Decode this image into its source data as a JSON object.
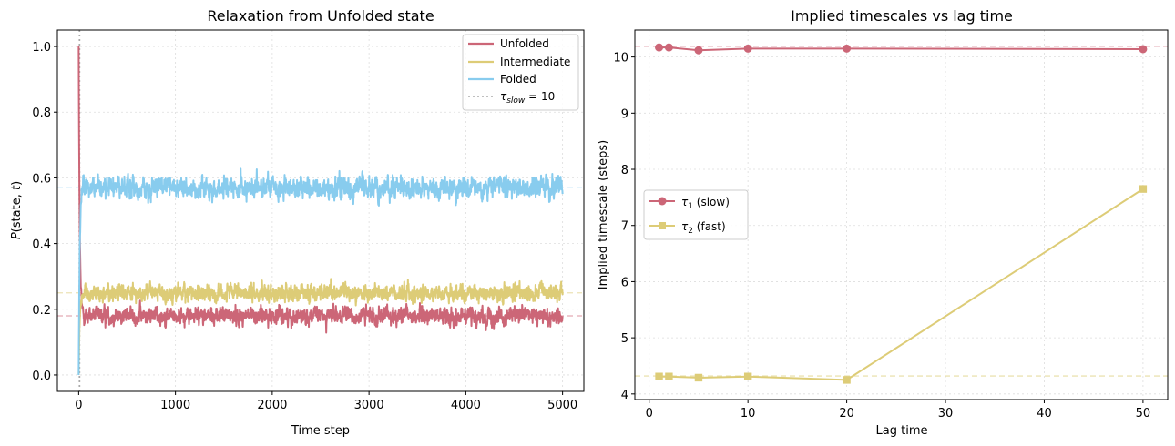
{
  "figure": {
    "background": "#ffffff"
  },
  "chart_data": [
    {
      "type": "line",
      "title": "Relaxation from Unfolded state",
      "xlabel": "Time step",
      "ylabel": "P(state, t)",
      "xlim": [
        -220,
        5220
      ],
      "ylim": [
        -0.05,
        1.05
      ],
      "xticks": [
        0,
        1000,
        2000,
        3000,
        4000,
        5000
      ],
      "xtick_labels": [
        "0",
        "1000",
        "2000",
        "3000",
        "4000",
        "5000"
      ],
      "yticks": [
        0.0,
        0.2,
        0.4,
        0.6,
        0.8,
        1.0
      ],
      "ytick_labels": [
        "0.0",
        "0.2",
        "0.4",
        "0.6",
        "0.8",
        "1.0"
      ],
      "grid": true,
      "legend_position": "top-right",
      "t_max": 5000,
      "series": [
        {
          "name": "Unfolded",
          "label": "Unfolded",
          "color": "#CC6677",
          "start": 1.0,
          "mean": 0.18,
          "noise": 0.018
        },
        {
          "name": "Intermediate",
          "label": "Intermediate",
          "color": "#DDCC77",
          "start": 0.0,
          "mean": 0.25,
          "noise": 0.018
        },
        {
          "name": "Folded",
          "label": "Folded",
          "color": "#88CCEE",
          "start": 0.0,
          "mean": 0.57,
          "noise": 0.022
        }
      ],
      "reference_lines": [
        {
          "orientation": "vertical",
          "value": 10,
          "color": "#aaaaaa",
          "style": "dotted",
          "label_main": "τ",
          "label_sub": "slow",
          "label_tail": " = 10"
        },
        {
          "orientation": "horizontal",
          "value": 0.18,
          "color": "#CC6677",
          "style": "dashed"
        },
        {
          "orientation": "horizontal",
          "value": 0.25,
          "color": "#DDCC77",
          "style": "dashed"
        },
        {
          "orientation": "horizontal",
          "value": 0.57,
          "color": "#88CCEE",
          "style": "dashed"
        }
      ]
    },
    {
      "type": "line",
      "title": "Implied timescales vs lag time",
      "xlabel": "Lag time",
      "ylabel": "Implied timescale (steps)",
      "xlim": [
        -1.45,
        52.5
      ],
      "ylim": [
        3.9,
        10.48
      ],
      "xticks": [
        0,
        10,
        20,
        30,
        40,
        50
      ],
      "xtick_labels": [
        "0",
        "10",
        "20",
        "30",
        "40",
        "50"
      ],
      "yticks": [
        4,
        5,
        6,
        7,
        8,
        9,
        10
      ],
      "ytick_labels": [
        "4",
        "5",
        "6",
        "7",
        "8",
        "9",
        "10"
      ],
      "grid": true,
      "legend_position": "center-left",
      "x": [
        1,
        2,
        5,
        10,
        20,
        50
      ],
      "series": [
        {
          "name": "tau1",
          "label_main": "τ",
          "label_sub": "1",
          "label_tail": " (slow)",
          "color": "#CC6677",
          "marker": "circle",
          "values": [
            10.17,
            10.17,
            10.12,
            10.15,
            10.15,
            10.14
          ]
        },
        {
          "name": "tau2",
          "label_main": "τ",
          "label_sub": "2",
          "label_tail": " (fast)",
          "color": "#DDCC77",
          "marker": "square",
          "values": [
            4.31,
            4.31,
            4.29,
            4.31,
            4.25,
            7.65
          ]
        }
      ],
      "reference_lines": [
        {
          "orientation": "horizontal",
          "value": 10.19,
          "color": "#CC6677",
          "style": "dashed"
        },
        {
          "orientation": "horizontal",
          "value": 4.32,
          "color": "#DDCC77",
          "style": "dashed"
        }
      ]
    }
  ]
}
